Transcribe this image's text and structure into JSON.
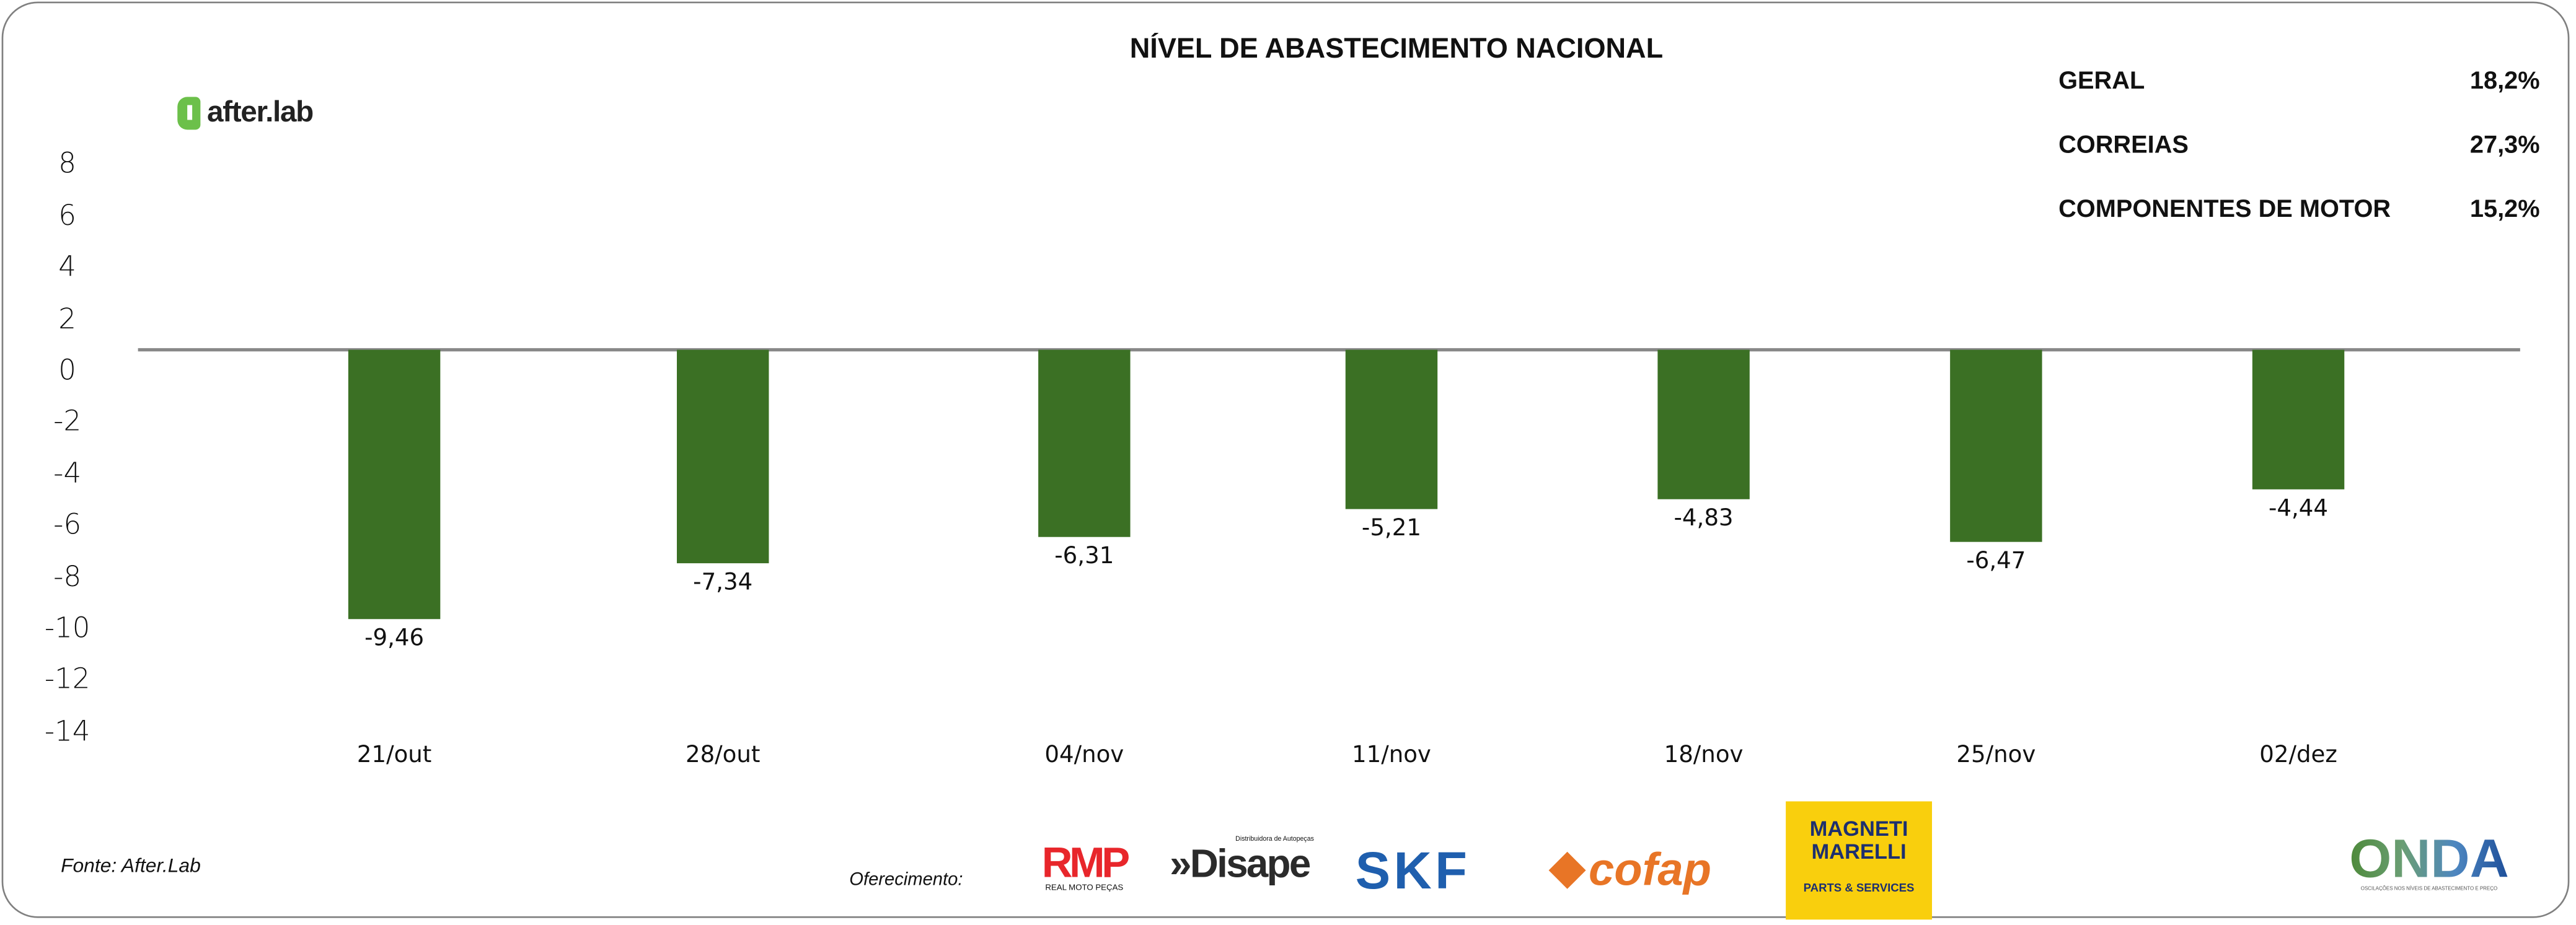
{
  "brand": "after.lab",
  "kpis": [
    {
      "label": "GERAL",
      "value": "18,2%"
    },
    {
      "label": "CORREIAS",
      "value": "27,3%"
    },
    {
      "label": "COMPONENTES DE MOTOR",
      "value": "15,2%"
    }
  ],
  "footer": {
    "source": "Fonte: After.Lab",
    "sponsor_label": "Oferecimento:"
  },
  "sponsors": {
    "rmp": "RMP",
    "rmp_sub": "REAL MOTO PEÇAS",
    "disape": "»Disape",
    "disape_sub": "Distribuidora de Autopeças",
    "skf": "SKF",
    "cofap": "cofap",
    "magneti": "MAGNETI MARELLI",
    "magneti_sub": "PARTS & SERVICES",
    "onda": "ONDA",
    "onda_sub": "OSCILAÇÕES NOS NÍVEIS DE ABASTECIMENTO E PREÇO"
  },
  "colors": {
    "bar": "#3b7024",
    "accent": "#6cc04a"
  },
  "chart_data": {
    "type": "bar",
    "title": "NÍVEL DE ABASTECIMENTO NACIONAL",
    "categories": [
      "21/out",
      "28/out",
      "04/nov",
      "11/nov",
      "18/nov",
      "25/nov",
      "02/dez"
    ],
    "values": [
      -9.46,
      -7.34,
      -6.31,
      -5.21,
      -4.83,
      -6.47,
      -4.44
    ],
    "value_labels": [
      "-9,46",
      "-7,34",
      "-6,31",
      "-5,21",
      "-4,83",
      "-6,47",
      "-4,44"
    ],
    "yticks": [
      "8",
      "6",
      "4",
      "2",
      "0",
      "-2",
      "-4",
      "-6",
      "-8",
      "-10",
      "-12",
      "-14"
    ],
    "ylim": [
      -14,
      8
    ],
    "xlabel": "",
    "ylabel": "",
    "grid": false,
    "legend": "none"
  }
}
